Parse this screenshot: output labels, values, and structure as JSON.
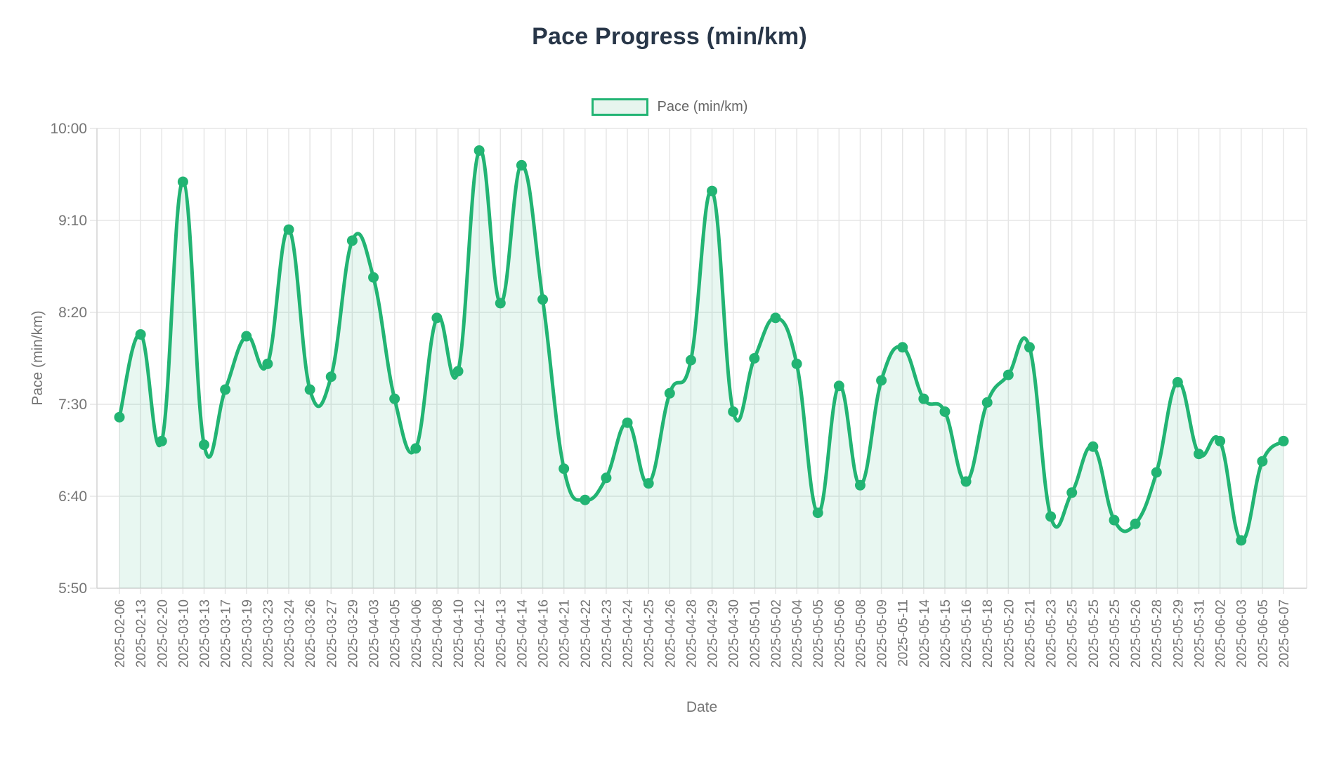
{
  "title": "Pace Progress (min/km)",
  "legend": {
    "label": "Pace (min/km)"
  },
  "axes": {
    "y": {
      "title": "Pace (min/km)"
    },
    "x": {
      "title": "Date"
    }
  },
  "colors": {
    "line": "#22b473",
    "point": "#22b473",
    "area_fill": "rgba(34,180,115,0.10)",
    "grid": "#e6e6e6",
    "axis_border": "#d4d4d4",
    "tick_text": "#757575",
    "title_text": "#283648",
    "legend_text": "#666666",
    "legend_swatch_fill": "#e7f5ee"
  },
  "chart_data": {
    "type": "line",
    "title": "Pace Progress (min/km)",
    "xlabel": "Date",
    "ylabel": "Pace (min/km)",
    "legend_entries": [
      "Pace (min/km)"
    ],
    "legend_position": "top",
    "grid": true,
    "smooth": true,
    "area_fill": true,
    "point_style": "circle",
    "y_tick_labels": [
      "10:00",
      "9:10",
      "8:20",
      "7:30",
      "6:40",
      "5:50"
    ],
    "y_tick_seconds": [
      600,
      550,
      500,
      450,
      400,
      350
    ],
    "y_min_seconds": 350,
    "y_max_seconds": 600,
    "ylim_pace": [
      "5:50",
      "10:00"
    ],
    "x": [
      "2025-02-06",
      "2025-02-13",
      "2025-02-20",
      "2025-03-10",
      "2025-03-13",
      "2025-03-17",
      "2025-03-19",
      "2025-03-23",
      "2025-03-24",
      "2025-03-26",
      "2025-03-27",
      "2025-03-29",
      "2025-04-03",
      "2025-04-05",
      "2025-04-06",
      "2025-04-08",
      "2025-04-10",
      "2025-04-12",
      "2025-04-13",
      "2025-04-14",
      "2025-04-16",
      "2025-04-21",
      "2025-04-22",
      "2025-04-23",
      "2025-04-24",
      "2025-04-25",
      "2025-04-26",
      "2025-04-28",
      "2025-04-29",
      "2025-04-30",
      "2025-05-01",
      "2025-05-02",
      "2025-05-04",
      "2025-05-05",
      "2025-05-06",
      "2025-05-08",
      "2025-05-09",
      "2025-05-11",
      "2025-05-14",
      "2025-05-15",
      "2025-05-16",
      "2025-05-18",
      "2025-05-20",
      "2025-05-21",
      "2025-05-23",
      "2025-05-25",
      "2025-05-25",
      "2025-05-25",
      "2025-05-26",
      "2025-05-28",
      "2025-05-29",
      "2025-05-31",
      "2025-06-02",
      "2025-06-03",
      "2025-06-05",
      "2025-06-07"
    ],
    "series": [
      {
        "name": "Pace (min/km)",
        "values_seconds": [
          443,
          488,
          430,
          571,
          428,
          458,
          487,
          472,
          545,
          458,
          465,
          539,
          519,
          453,
          426,
          497,
          468,
          588,
          505,
          580,
          507,
          415,
          398,
          410,
          440,
          407,
          456,
          474,
          566,
          446,
          475,
          497,
          472,
          391,
          460,
          406,
          463,
          481,
          453,
          446,
          408,
          451,
          466,
          481,
          389,
          402,
          427,
          387,
          385,
          413,
          462,
          423,
          430,
          376,
          419,
          430
        ],
        "values_pace": [
          "7:23",
          "8:08",
          "7:10",
          "9:31",
          "7:08",
          "7:38",
          "8:07",
          "7:52",
          "9:05",
          "7:38",
          "7:45",
          "8:59",
          "8:39",
          "7:33",
          "7:06",
          "8:17",
          "7:48",
          "9:48",
          "8:25",
          "9:40",
          "8:27",
          "6:55",
          "6:38",
          "6:50",
          "7:20",
          "6:47",
          "7:36",
          "7:54",
          "9:26",
          "7:26",
          "7:55",
          "8:17",
          "7:52",
          "6:31",
          "7:40",
          "6:46",
          "7:43",
          "8:01",
          "7:33",
          "7:26",
          "6:48",
          "7:31",
          "7:46",
          "8:01",
          "6:29",
          "6:42",
          "7:07",
          "6:27",
          "6:25",
          "6:53",
          "7:42",
          "7:03",
          "7:10",
          "6:16",
          "6:59",
          "7:10"
        ]
      }
    ]
  }
}
